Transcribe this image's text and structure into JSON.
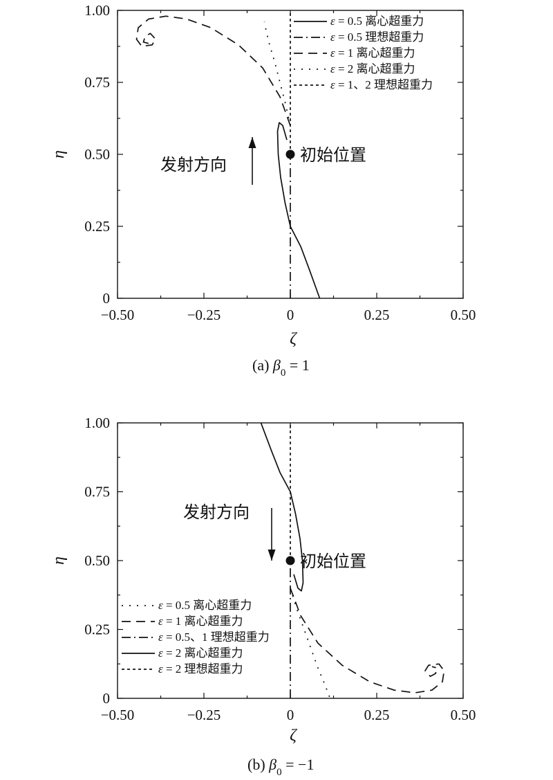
{
  "chart_data": [
    {
      "type": "line",
      "caption": {
        "prefix": "(a) ",
        "symbol": "β",
        "sub": "0",
        "suffix": " = 1"
      },
      "xlabel": "ζ",
      "ylabel": "η",
      "xlim": [
        -0.5,
        0.5
      ],
      "ylim": [
        0,
        1
      ],
      "xticks": [
        -0.5,
        -0.25,
        0,
        0.25,
        0.5
      ],
      "xtick_labels": [
        "−0.50",
        "−0.25",
        "0",
        "0.25",
        "0.50"
      ],
      "yticks": [
        0,
        0.25,
        0.5,
        0.75,
        1.0
      ],
      "ytick_labels": [
        "0",
        "0.25",
        "0.50",
        "0.75",
        "1.00"
      ],
      "grid": false,
      "legend_position": "top-right",
      "initial_point": {
        "x": 0,
        "y": 0.5,
        "label": "初始位置"
      },
      "launch_label": "发射方向",
      "launch_direction": "up",
      "series": [
        {
          "sym": "ε",
          "name": "= 0.5 离心超重力",
          "style": "solid",
          "x": [
            0.085,
            0.055,
            0.03,
            0.0,
            -0.015,
            -0.028,
            -0.035,
            -0.037,
            -0.032,
            -0.022,
            -0.01
          ],
          "y": [
            0.0,
            0.1,
            0.18,
            0.25,
            0.33,
            0.42,
            0.5,
            0.58,
            0.61,
            0.6,
            0.55
          ]
        },
        {
          "sym": "ε",
          "name": "= 0.5 理想超重力",
          "style": "dashdot",
          "x": [
            0.0,
            0.0
          ],
          "y": [
            0.0,
            0.5
          ]
        },
        {
          "sym": "ε",
          "name": "= 1 离心超重力",
          "style": "dash",
          "x": [
            0.0,
            -0.03,
            -0.08,
            -0.15,
            -0.23,
            -0.3,
            -0.36,
            -0.41,
            -0.44,
            -0.445,
            -0.43,
            -0.4,
            -0.39,
            -0.405,
            -0.42,
            -0.425,
            -0.41
          ],
          "y": [
            0.6,
            0.7,
            0.8,
            0.88,
            0.94,
            0.97,
            0.98,
            0.97,
            0.94,
            0.9,
            0.875,
            0.88,
            0.9,
            0.92,
            0.91,
            0.89,
            0.885
          ]
        },
        {
          "sym": "ε",
          "name": "= 2 离心超重力",
          "style": "dot",
          "x": [
            0.0,
            -0.015,
            -0.03,
            -0.045,
            -0.06,
            -0.07,
            -0.075
          ],
          "y": [
            0.6,
            0.68,
            0.75,
            0.82,
            0.88,
            0.93,
            0.96
          ]
        },
        {
          "sym": "ε",
          "name": "= 1、2 理想超重力",
          "style": "shortdash",
          "x": [
            0.0,
            0.0
          ],
          "y": [
            0.5,
            1.0
          ]
        }
      ]
    },
    {
      "type": "line",
      "caption": {
        "prefix": "(b) ",
        "symbol": "β",
        "sub": "0",
        "suffix": " = −1"
      },
      "xlabel": "ζ",
      "ylabel": "η",
      "xlim": [
        -0.5,
        0.5
      ],
      "ylim": [
        0,
        1
      ],
      "xticks": [
        -0.5,
        -0.25,
        0,
        0.25,
        0.5
      ],
      "xtick_labels": [
        "−0.50",
        "−0.25",
        "0",
        "0.25",
        "0.50"
      ],
      "yticks": [
        0,
        0.25,
        0.5,
        0.75,
        1.0
      ],
      "ytick_labels": [
        "0",
        "0.25",
        "0.50",
        "0.75",
        "1.00"
      ],
      "grid": false,
      "legend_position": "bottom-left",
      "initial_point": {
        "x": 0,
        "y": 0.5,
        "label": "初始位置"
      },
      "launch_label": "发射方向",
      "launch_direction": "down",
      "series": [
        {
          "sym": "ε",
          "name": "= 0.5 离心超重力",
          "style": "dot",
          "x": [
            0.0,
            0.02,
            0.04,
            0.06,
            0.08,
            0.1,
            0.115
          ],
          "y": [
            0.4,
            0.32,
            0.25,
            0.18,
            0.11,
            0.05,
            0.0
          ]
        },
        {
          "sym": "ε",
          "name": "= 1 离心超重力",
          "style": "dash",
          "x": [
            0.0,
            0.03,
            0.08,
            0.15,
            0.23,
            0.3,
            0.36,
            0.41,
            0.44,
            0.445,
            0.43,
            0.4,
            0.39,
            0.405,
            0.42,
            0.425,
            0.41
          ],
          "y": [
            0.4,
            0.3,
            0.2,
            0.12,
            0.06,
            0.03,
            0.02,
            0.03,
            0.06,
            0.1,
            0.125,
            0.12,
            0.1,
            0.08,
            0.09,
            0.11,
            0.115
          ]
        },
        {
          "sym": "ε",
          "name": "= 0.5、1 理想超重力",
          "style": "dashdot",
          "x": [
            0.0,
            0.0
          ],
          "y": [
            0.0,
            0.5
          ]
        },
        {
          "sym": "ε",
          "name": "= 2 离心超重力",
          "style": "solid",
          "x": [
            -0.085,
            -0.055,
            -0.03,
            0.0,
            0.015,
            0.028,
            0.035,
            0.037,
            0.032,
            0.022,
            0.01
          ],
          "y": [
            1.0,
            0.9,
            0.82,
            0.75,
            0.67,
            0.58,
            0.5,
            0.42,
            0.39,
            0.4,
            0.45
          ]
        },
        {
          "sym": "ε",
          "name": "= 2 理想超重力",
          "style": "shortdash",
          "x": [
            0.0,
            0.0
          ],
          "y": [
            0.5,
            1.0
          ]
        }
      ]
    }
  ]
}
